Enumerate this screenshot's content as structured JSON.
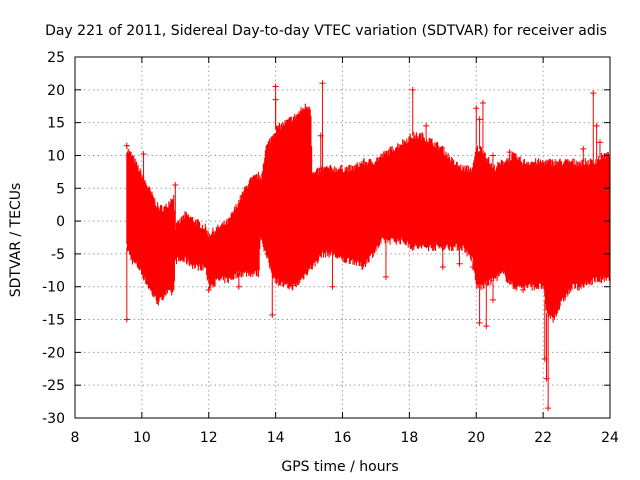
{
  "chart_data": {
    "type": "scatter",
    "title": "Day 221 of 2011, Sidereal Day-to-day VTEC variation (SDTVAR) for receiver adis",
    "xlabel": "GPS time / hours",
    "ylabel": "SDTVAR / TECUs",
    "xlim": [
      8,
      24
    ],
    "ylim": [
      -30,
      25
    ],
    "xticks": [
      8,
      10,
      12,
      14,
      16,
      18,
      20,
      22,
      24
    ],
    "yticks": [
      -30,
      -25,
      -20,
      -15,
      -10,
      -5,
      0,
      5,
      10,
      15,
      20,
      25
    ],
    "xtick_labels": [
      "8",
      "10",
      "12",
      "14",
      "16",
      "18",
      "20",
      "22",
      "24"
    ],
    "ytick_labels": [
      "-30",
      "-25",
      "-20",
      "-15",
      "-10",
      "-5",
      "0",
      "5",
      "10",
      "15",
      "20",
      "25"
    ],
    "grid": true,
    "legend": "none",
    "marker": "plus",
    "color": "#ff0000",
    "series": [
      {
        "envelope": {
          "x": [
            9.55,
            9.7,
            9.9,
            10.1,
            10.3,
            10.5,
            10.7,
            10.95,
            11.0,
            11.3,
            11.6,
            11.9,
            12.0,
            12.3,
            12.6,
            12.9,
            13.2,
            13.5,
            13.55,
            13.7,
            13.9,
            14.0,
            14.3,
            14.6,
            14.9,
            15.05,
            15.1,
            15.4,
            15.7,
            16.0,
            16.3,
            16.6,
            16.9,
            17.2,
            17.5,
            17.8,
            18.1,
            18.4,
            18.7,
            19.0,
            19.3,
            19.6,
            19.9,
            20.0,
            20.2,
            20.5,
            20.8,
            21.1,
            21.4,
            21.7,
            22.0,
            22.1,
            22.3,
            22.6,
            22.9,
            23.2,
            23.5,
            23.8,
            24.0
          ],
          "upper": [
            11,
            10,
            8,
            6,
            4,
            2,
            2,
            4,
            -1,
            1,
            0,
            -1,
            -2,
            -1,
            0,
            3,
            6,
            7,
            6,
            11,
            13,
            14,
            15,
            16,
            17.5,
            17.5,
            7,
            8,
            8,
            8,
            8,
            9,
            9,
            10,
            11,
            12,
            13,
            13,
            12,
            11,
            9,
            8,
            8,
            11,
            11,
            8,
            9,
            10,
            9,
            9,
            9,
            9,
            9,
            9,
            9,
            9,
            9,
            10,
            10
          ],
          "lower": [
            -4,
            -6,
            -7,
            -9,
            -11,
            -12.5,
            -11,
            -11,
            -6,
            -6,
            -7,
            -7,
            -10,
            -9,
            -9,
            -8,
            -8,
            -8,
            -2,
            -5,
            -8,
            -9,
            -10,
            -10,
            -8,
            -7,
            -7,
            -5,
            -5,
            -6,
            -6,
            -7,
            -5,
            -3,
            -3,
            -3,
            -4,
            -4,
            -4,
            -4,
            -4,
            -4,
            -6,
            -10,
            -10,
            -9,
            -8,
            -10,
            -10,
            -10,
            -10,
            -14,
            -15,
            -12,
            -10,
            -10,
            -9,
            -9,
            -9
          ]
        },
        "outliers": [
          {
            "x": 9.55,
            "y": -15
          },
          {
            "x": 9.55,
            "y": 11.5
          },
          {
            "x": 10.05,
            "y": 10.2
          },
          {
            "x": 11.0,
            "y": 5.5
          },
          {
            "x": 12.0,
            "y": -10.5
          },
          {
            "x": 12.9,
            "y": -10
          },
          {
            "x": 13.8,
            "y": 11.5
          },
          {
            "x": 13.9,
            "y": -14.3
          },
          {
            "x": 14.0,
            "y": 20.5
          },
          {
            "x": 14.0,
            "y": 18.5
          },
          {
            "x": 14.5,
            "y": -9.8
          },
          {
            "x": 15.35,
            "y": 13
          },
          {
            "x": 15.4,
            "y": 21
          },
          {
            "x": 15.7,
            "y": -10
          },
          {
            "x": 17.3,
            "y": -8.5
          },
          {
            "x": 18.1,
            "y": 20
          },
          {
            "x": 18.5,
            "y": 14.5
          },
          {
            "x": 19.0,
            "y": -7
          },
          {
            "x": 19.5,
            "y": -6.5
          },
          {
            "x": 19.9,
            "y": -7
          },
          {
            "x": 20.0,
            "y": 17.2
          },
          {
            "x": 20.1,
            "y": 15.5
          },
          {
            "x": 20.1,
            "y": -15.5
          },
          {
            "x": 20.2,
            "y": 18
          },
          {
            "x": 20.3,
            "y": -16
          },
          {
            "x": 20.5,
            "y": 10
          },
          {
            "x": 20.5,
            "y": -12
          },
          {
            "x": 21.0,
            "y": 10.5
          },
          {
            "x": 21.4,
            "y": -10.5
          },
          {
            "x": 22.05,
            "y": -21
          },
          {
            "x": 22.1,
            "y": -24
          },
          {
            "x": 22.15,
            "y": -28.5
          },
          {
            "x": 23.2,
            "y": 11
          },
          {
            "x": 23.5,
            "y": 19.5
          },
          {
            "x": 23.6,
            "y": 14.5
          },
          {
            "x": 23.7,
            "y": 12
          }
        ]
      }
    ]
  }
}
